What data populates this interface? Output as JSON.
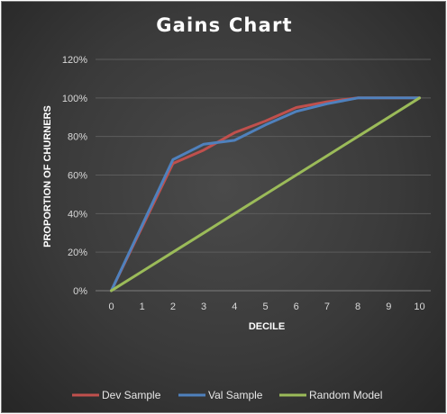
{
  "chart_data": {
    "type": "line",
    "title": "Gains Chart",
    "xlabel": "DECILE",
    "ylabel": "PROPORTION OF CHURNERS",
    "x": [
      0,
      1,
      2,
      3,
      4,
      5,
      6,
      7,
      8,
      9,
      10
    ],
    "xlim": [
      0,
      10
    ],
    "ylim": [
      0,
      1.2
    ],
    "y_ticks": [
      "0%",
      "20%",
      "40%",
      "60%",
      "80%",
      "100%",
      "120%"
    ],
    "x_ticks": [
      "0",
      "1",
      "2",
      "3",
      "4",
      "5",
      "6",
      "7",
      "8",
      "9",
      "10"
    ],
    "grid": true,
    "legend_position": "bottom",
    "series": [
      {
        "name": "Dev Sample",
        "color": "#c0504d",
        "values": [
          0,
          0.33,
          0.66,
          0.73,
          0.82,
          0.88,
          0.95,
          0.98,
          1.0,
          1.0,
          1.0
        ]
      },
      {
        "name": "Val Sample",
        "color": "#4f81bd",
        "values": [
          0,
          0.34,
          0.68,
          0.76,
          0.78,
          0.86,
          0.93,
          0.97,
          1.0,
          1.0,
          1.0
        ]
      },
      {
        "name": "Random Model",
        "color": "#9bbb59",
        "values": [
          0,
          0.1,
          0.2,
          0.3,
          0.4,
          0.5,
          0.6,
          0.7,
          0.8,
          0.9,
          1.0
        ]
      }
    ]
  }
}
